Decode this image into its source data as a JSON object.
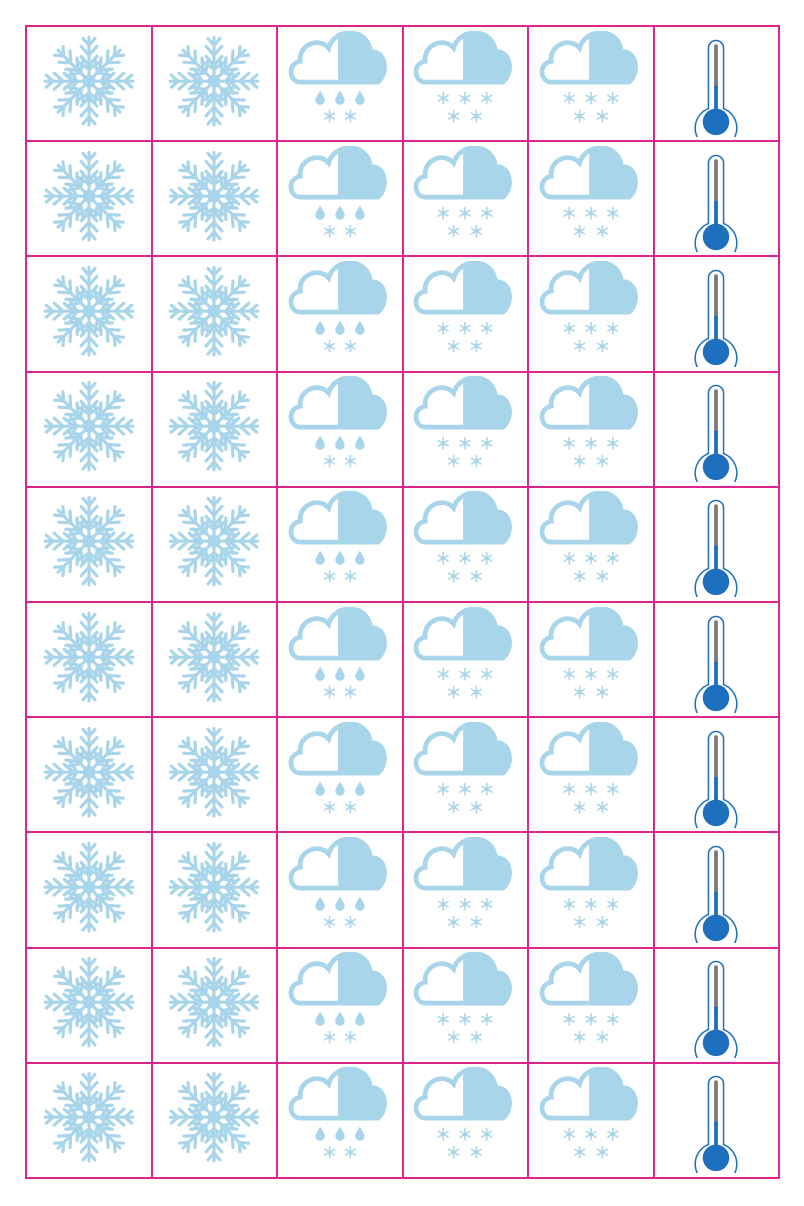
{
  "sheet": {
    "rows": 10,
    "columns": [
      {
        "icon": "snowflake-icon"
      },
      {
        "icon": "snowflake-icon"
      },
      {
        "icon": "cloud-rain-snow-icon"
      },
      {
        "icon": "cloud-snow-icon"
      },
      {
        "icon": "cloud-snow-icon"
      },
      {
        "icon": "thermometer-icon"
      }
    ]
  },
  "colors": {
    "grid_line": "#e0248f",
    "icon_light_blue": "#a9d5ea",
    "icon_dark_blue": "#1f6fbf",
    "thermometer_stem": "#7a7a7a",
    "background": "#ffffff"
  }
}
